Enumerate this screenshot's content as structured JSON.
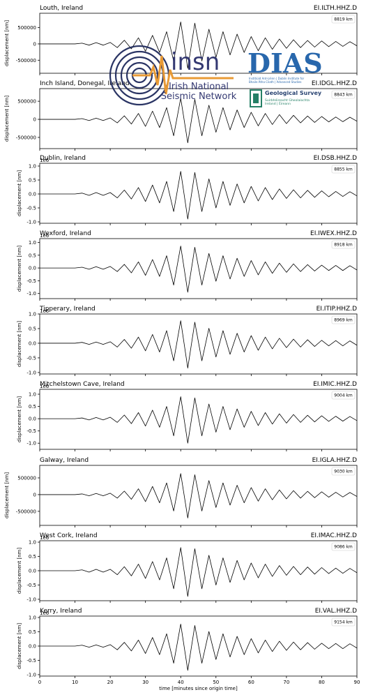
{
  "logo": {
    "insn": "insn",
    "network": [
      "Irish National",
      "Seismic Network"
    ],
    "dias": "DIAS",
    "dias_sub": [
      "Institiúid Ard-Léinn | Dublin Institute for",
      "Bhaile Átha Cliath | Advanced Studies"
    ],
    "gsi": "Geological Survey",
    "gsi_sub": [
      "Suirbhéireacht Gheolaíochta",
      "Ireland | Éireann"
    ]
  },
  "chart_data": [
    {
      "type": "line",
      "title": "Louth, Ireland",
      "station": "EI.ILTH.HHZ.D",
      "distance_label": "8819 km",
      "ylabel": "displacement [nm]",
      "color": "#000000",
      "x": [
        0,
        2,
        4,
        6,
        8,
        10,
        12,
        14,
        16,
        18,
        20,
        22,
        24,
        26,
        28,
        30,
        32,
        34,
        36,
        38,
        40,
        42,
        44,
        46,
        48,
        50,
        52,
        54,
        56,
        58,
        60,
        62,
        64,
        66,
        68,
        70,
        72,
        74,
        76,
        78,
        80,
        82,
        84,
        86,
        88,
        90
      ],
      "values": [
        0,
        0,
        0,
        0,
        0,
        0,
        22500,
        -37500,
        37500,
        -37500,
        45000,
        -112500,
        112500,
        -150000,
        187500,
        -225000,
        262500,
        -262500,
        375000,
        -525000,
        675000,
        -750000,
        637500,
        -525000,
        450000,
        -412500,
        375000,
        -337500,
        300000,
        -262500,
        225000,
        -210000,
        187500,
        -165000,
        150000,
        -135000,
        127500,
        -112500,
        105000,
        -97500,
        90000,
        -82500,
        75000,
        -75000,
        67500,
        -60000
      ],
      "xlim": [
        0,
        90
      ],
      "xticks": [
        0,
        10,
        20,
        30,
        40,
        50,
        60,
        70,
        80,
        90
      ],
      "ylim": [
        -900000,
        940000
      ],
      "yticks": [
        -500000,
        0,
        500000
      ]
    },
    {
      "type": "line",
      "title": "Inch Island, Donegal, Ireland",
      "station": "EI.IDGL.HHZ.D",
      "distance_label": "8843 km",
      "ylabel": "displacement [nm]",
      "color": "#000000",
      "x": [
        0,
        2,
        4,
        6,
        8,
        10,
        12,
        14,
        16,
        18,
        20,
        22,
        24,
        26,
        28,
        30,
        32,
        34,
        36,
        38,
        40,
        42,
        44,
        46,
        48,
        50,
        52,
        54,
        56,
        58,
        60,
        62,
        64,
        66,
        68,
        70,
        72,
        74,
        76,
        78,
        80,
        82,
        84,
        86,
        88,
        90
      ],
      "values": [
        0,
        0,
        0,
        0,
        0,
        0,
        19500,
        -32500,
        32500,
        -32500,
        39000,
        -97500,
        97500,
        -130000,
        162500,
        -195000,
        227500,
        -227500,
        325000,
        -455000,
        585000,
        -650000,
        552500,
        -455000,
        390000,
        -357500,
        325000,
        -292500,
        260000,
        -227500,
        195000,
        -182000,
        162500,
        -143000,
        130000,
        -117000,
        110500,
        -97500,
        91000,
        -84500,
        78000,
        -71500,
        65000,
        -65000,
        58500,
        -52000
      ],
      "xlim": [
        0,
        90
      ],
      "xticks": [
        0,
        10,
        20,
        30,
        40,
        50,
        60,
        70,
        80,
        90
      ],
      "ylim": [
        -810000,
        850000
      ],
      "yticks": [
        -500000,
        0,
        500000
      ]
    },
    {
      "type": "line",
      "title": "Dublin, Ireland",
      "station": "EI.DSB.HHZ.D",
      "distance_label": "8855 km",
      "ylabel": "displacement [nm]",
      "offset_label": "1e6",
      "color": "#000000",
      "x": [
        0,
        2,
        4,
        6,
        8,
        10,
        12,
        14,
        16,
        18,
        20,
        22,
        24,
        26,
        28,
        30,
        32,
        34,
        36,
        38,
        40,
        42,
        44,
        46,
        48,
        50,
        52,
        54,
        56,
        58,
        60,
        62,
        64,
        66,
        68,
        70,
        72,
        74,
        76,
        78,
        80,
        82,
        84,
        86,
        88,
        90
      ],
      "values": [
        0,
        0,
        0,
        0,
        0,
        0,
        0.03,
        -0.05,
        0.05,
        -0.05,
        0.05,
        -0.14,
        0.14,
        -0.18,
        0.23,
        -0.27,
        0.32,
        -0.32,
        0.45,
        -0.63,
        0.81,
        -0.9,
        0.77,
        -0.63,
        0.54,
        -0.5,
        0.45,
        -0.41,
        0.36,
        -0.32,
        0.27,
        -0.25,
        0.23,
        -0.2,
        0.18,
        -0.16,
        0.15,
        -0.14,
        0.13,
        -0.12,
        0.11,
        -0.1,
        0.09,
        -0.09,
        0.08,
        -0.07
      ],
      "xlim": [
        0,
        90
      ],
      "xticks": [
        0,
        10,
        20,
        30,
        40,
        50,
        60,
        70,
        80,
        90
      ],
      "ylim": [
        -1.05,
        1.1
      ],
      "yticks": [
        {
          "value": -1,
          "label": "-1.0"
        },
        -0.5,
        {
          "value": 0,
          "label": "0.0"
        },
        0.5,
        {
          "value": 1,
          "label": "1.0"
        }
      ]
    },
    {
      "type": "line",
      "title": "Wexford, Ireland",
      "station": "EI.IWEX.HHZ.D",
      "distance_label": "8918 km",
      "ylabel": "displacement [nm]",
      "offset_label": "1e6",
      "color": "#000000",
      "x": [
        0,
        2,
        4,
        6,
        8,
        10,
        12,
        14,
        16,
        18,
        20,
        22,
        24,
        26,
        28,
        30,
        32,
        34,
        36,
        38,
        40,
        42,
        44,
        46,
        48,
        50,
        52,
        54,
        56,
        58,
        60,
        62,
        64,
        66,
        68,
        70,
        72,
        74,
        76,
        78,
        80,
        82,
        84,
        86,
        88,
        90
      ],
      "values": [
        0,
        0,
        0,
        0,
        0,
        0,
        0.03,
        -0.05,
        0.05,
        -0.05,
        0.06,
        -0.14,
        0.14,
        -0.19,
        0.24,
        -0.29,
        0.33,
        -0.33,
        0.48,
        -0.67,
        0.86,
        -0.95,
        0.81,
        -0.67,
        0.57,
        -0.52,
        0.48,
        -0.43,
        0.38,
        -0.33,
        0.29,
        -0.27,
        0.24,
        -0.21,
        0.19,
        -0.17,
        0.16,
        -0.14,
        0.13,
        -0.12,
        0.11,
        -0.1,
        0.1,
        -0.1,
        0.09,
        -0.08
      ],
      "xlim": [
        0,
        90
      ],
      "xticks": [
        0,
        10,
        20,
        30,
        40,
        50,
        60,
        70,
        80,
        90
      ],
      "ylim": [
        -1.2,
        1.15
      ],
      "yticks": [
        {
          "value": -1,
          "label": "-1.0"
        },
        -0.5,
        {
          "value": 0,
          "label": "0.0"
        },
        0.5,
        {
          "value": 1,
          "label": "1.0"
        }
      ]
    },
    {
      "type": "line",
      "title": "Tipperary, Ireland",
      "station": "EI.ITIP.HHZ.D",
      "distance_label": "8969 km",
      "ylabel": "displacement [nm]",
      "offset_label": "1e6",
      "color": "#000000",
      "x": [
        0,
        2,
        4,
        6,
        8,
        10,
        12,
        14,
        16,
        18,
        20,
        22,
        24,
        26,
        28,
        30,
        32,
        34,
        36,
        38,
        40,
        42,
        44,
        46,
        48,
        50,
        52,
        54,
        56,
        58,
        60,
        62,
        64,
        66,
        68,
        70,
        72,
        74,
        76,
        78,
        80,
        82,
        84,
        86,
        88,
        90
      ],
      "values": [
        0,
        0,
        0,
        0,
        0,
        0,
        0.03,
        -0.04,
        0.04,
        -0.04,
        0.05,
        -0.13,
        0.13,
        -0.17,
        0.21,
        -0.26,
        0.3,
        -0.3,
        0.43,
        -0.6,
        0.77,
        -0.85,
        0.72,
        -0.6,
        0.51,
        -0.47,
        0.43,
        -0.38,
        0.34,
        -0.3,
        0.26,
        -0.24,
        0.21,
        -0.19,
        0.17,
        -0.15,
        0.14,
        -0.13,
        0.12,
        -0.11,
        0.1,
        -0.09,
        0.09,
        -0.09,
        0.08,
        -0.07
      ],
      "xlim": [
        0,
        90
      ],
      "xticks": [
        0,
        10,
        20,
        30,
        40,
        50,
        60,
        70,
        80,
        90
      ],
      "ylim": [
        -1.05,
        1.0
      ],
      "yticks": [
        {
          "value": -1,
          "label": "-1.0"
        },
        -0.5,
        {
          "value": 0,
          "label": "0.0"
        },
        0.5,
        {
          "value": 1,
          "label": "1.0"
        }
      ]
    },
    {
      "type": "line",
      "title": "Mitchelstown Cave, Ireland",
      "station": "EI.IMIC.HHZ.D",
      "distance_label": "9004 km",
      "ylabel": "displacement [nm]",
      "offset_label": "1e6",
      "color": "#000000",
      "x": [
        0,
        2,
        4,
        6,
        8,
        10,
        12,
        14,
        16,
        18,
        20,
        22,
        24,
        26,
        28,
        30,
        32,
        34,
        36,
        38,
        40,
        42,
        44,
        46,
        48,
        50,
        52,
        54,
        56,
        58,
        60,
        62,
        64,
        66,
        68,
        70,
        72,
        74,
        76,
        78,
        80,
        82,
        84,
        86,
        88,
        90
      ],
      "values": [
        0,
        0,
        0,
        0,
        0,
        0,
        0.03,
        -0.05,
        0.05,
        -0.05,
        0.06,
        -0.15,
        0.15,
        -0.2,
        0.25,
        -0.3,
        0.35,
        -0.35,
        0.5,
        -0.7,
        0.9,
        -1.0,
        0.85,
        -0.7,
        0.6,
        -0.55,
        0.5,
        -0.45,
        0.4,
        -0.35,
        0.3,
        -0.28,
        0.25,
        -0.22,
        0.2,
        -0.18,
        0.17,
        -0.15,
        0.14,
        -0.13,
        0.12,
        -0.11,
        0.1,
        -0.1,
        0.09,
        -0.08
      ],
      "xlim": [
        0,
        90
      ],
      "xticks": [
        0,
        10,
        20,
        30,
        40,
        50,
        60,
        70,
        80,
        90
      ],
      "ylim": [
        -1.25,
        1.2
      ],
      "yticks": [
        {
          "value": -1,
          "label": "-1.0"
        },
        -0.5,
        {
          "value": 0,
          "label": "0.0"
        },
        0.5,
        {
          "value": 1,
          "label": "1.0"
        }
      ]
    },
    {
      "type": "line",
      "title": "Galway, Ireland",
      "station": "EI.IGLA.HHZ.D",
      "distance_label": "9030 km",
      "ylabel": "displacement [nm]",
      "color": "#000000",
      "x": [
        0,
        2,
        4,
        6,
        8,
        10,
        12,
        14,
        16,
        18,
        20,
        22,
        24,
        26,
        28,
        30,
        32,
        34,
        36,
        38,
        40,
        42,
        44,
        46,
        48,
        50,
        52,
        54,
        56,
        58,
        60,
        62,
        64,
        66,
        68,
        70,
        72,
        74,
        76,
        78,
        80,
        82,
        84,
        86,
        88,
        90
      ],
      "values": [
        0,
        0,
        0,
        0,
        0,
        0,
        21000,
        -35000,
        35000,
        -35000,
        42000,
        -105000,
        105000,
        -140000,
        175000,
        -210000,
        245000,
        -245000,
        350000,
        -490000,
        630000,
        -700000,
        595000,
        -490000,
        420000,
        -385000,
        350000,
        -315000,
        280000,
        -245000,
        210000,
        -196000,
        175000,
        -154000,
        140000,
        -126000,
        119000,
        -105000,
        98000,
        -91000,
        84000,
        -77000,
        70000,
        -70000,
        63000,
        -56000
      ],
      "xlim": [
        0,
        90
      ],
      "xticks": [
        0,
        10,
        20,
        30,
        40,
        50,
        60,
        70,
        80,
        90
      ],
      "ylim": [
        -920000,
        875000
      ],
      "yticks": [
        -500000,
        0,
        500000
      ]
    },
    {
      "type": "line",
      "title": "West Cork, Ireland",
      "station": "EI.IMAC.HHZ.D",
      "distance_label": "9086 km",
      "ylabel": "displacement [nm]",
      "offset_label": "1e6",
      "color": "#000000",
      "x": [
        0,
        2,
        4,
        6,
        8,
        10,
        12,
        14,
        16,
        18,
        20,
        22,
        24,
        26,
        28,
        30,
        32,
        34,
        36,
        38,
        40,
        42,
        44,
        46,
        48,
        50,
        52,
        54,
        56,
        58,
        60,
        62,
        64,
        66,
        68,
        70,
        72,
        74,
        76,
        78,
        80,
        82,
        84,
        86,
        88,
        90
      ],
      "values": [
        0,
        0,
        0,
        0,
        0,
        0,
        0.03,
        -0.05,
        0.05,
        -0.05,
        0.05,
        -0.14,
        0.14,
        -0.18,
        0.23,
        -0.27,
        0.32,
        -0.32,
        0.45,
        -0.63,
        0.81,
        -0.9,
        0.77,
        -0.63,
        0.54,
        -0.5,
        0.45,
        -0.41,
        0.36,
        -0.32,
        0.27,
        -0.25,
        0.23,
        -0.2,
        0.18,
        -0.16,
        0.15,
        -0.14,
        0.13,
        -0.12,
        0.11,
        -0.1,
        0.09,
        -0.09,
        0.08,
        -0.07
      ],
      "xlim": [
        0,
        90
      ],
      "xticks": [
        0,
        10,
        20,
        30,
        40,
        50,
        60,
        70,
        80,
        90
      ],
      "ylim": [
        -1.05,
        1.05
      ],
      "yticks": [
        {
          "value": -1,
          "label": "-1.0"
        },
        -0.5,
        {
          "value": 0,
          "label": "0.0"
        },
        0.5,
        {
          "value": 1,
          "label": "1.0"
        }
      ]
    },
    {
      "type": "line",
      "title": "Kerry, Ireland",
      "station": "EI.VAL.HHZ.D",
      "distance_label": "9154 km",
      "ylabel": "displacement [nm]",
      "offset_label": "1e6",
      "color": "#000000",
      "x": [
        0,
        2,
        4,
        6,
        8,
        10,
        12,
        14,
        16,
        18,
        20,
        22,
        24,
        26,
        28,
        30,
        32,
        34,
        36,
        38,
        40,
        42,
        44,
        46,
        48,
        50,
        52,
        54,
        56,
        58,
        60,
        62,
        64,
        66,
        68,
        70,
        72,
        74,
        76,
        78,
        80,
        82,
        84,
        86,
        88,
        90
      ],
      "values": [
        0,
        0,
        0,
        0,
        0,
        0,
        0.03,
        -0.04,
        0.04,
        -0.04,
        0.05,
        -0.13,
        0.13,
        -0.17,
        0.21,
        -0.26,
        0.3,
        -0.3,
        0.43,
        -0.6,
        0.77,
        -0.85,
        0.72,
        -0.6,
        0.51,
        -0.47,
        0.43,
        -0.38,
        0.34,
        -0.3,
        0.26,
        -0.24,
        0.21,
        -0.19,
        0.17,
        -0.15,
        0.14,
        -0.13,
        0.12,
        -0.11,
        0.1,
        -0.09,
        0.09,
        -0.09,
        0.08,
        -0.07
      ],
      "xlim": [
        0,
        90
      ],
      "xticks": [
        0,
        10,
        20,
        30,
        40,
        50,
        60,
        70,
        80,
        90
      ],
      "xlabel": "time [minutes since origin time]",
      "ylim": [
        -1.05,
        1.05
      ],
      "yticks": [
        {
          "value": -1,
          "label": "-1.0"
        },
        -0.5,
        {
          "value": 0,
          "label": "0.0"
        },
        0.5,
        {
          "value": 1,
          "label": "1.0"
        }
      ]
    }
  ]
}
